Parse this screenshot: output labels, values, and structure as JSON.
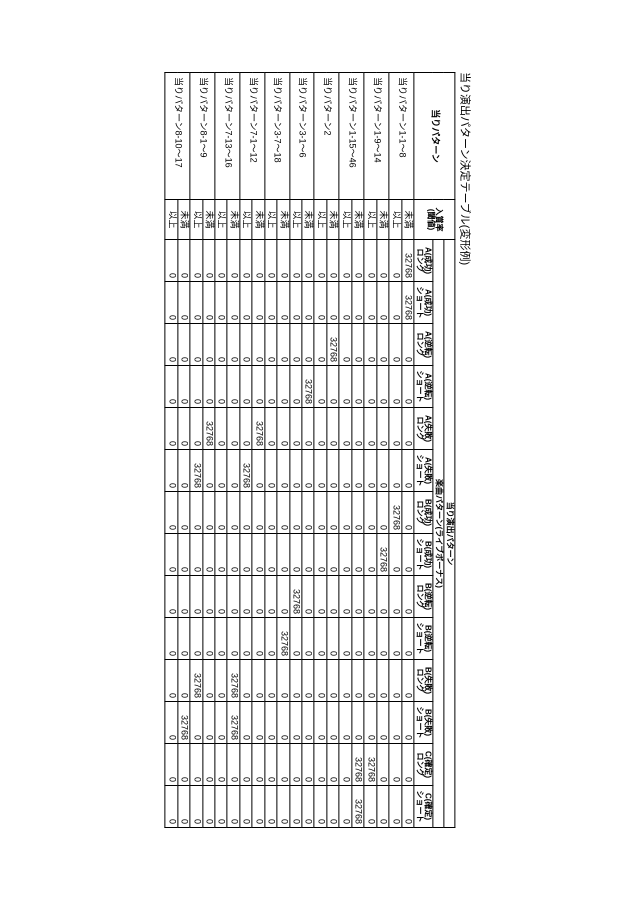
{
  "title": "当り演出パターン決定テーブル(変形例)",
  "headers": {
    "pattern_col": "当りパターン",
    "threshold_col": "入賞率\n(閾値)",
    "group_top": "当り演出パターン",
    "group_mid": "楽曲パターン(ライブボーナス)",
    "cols": [
      "A(成功)\nロング",
      "A(成功)\nショート",
      "A(逆転)\nロング",
      "A(逆転)\nショート",
      "A(失敗)\nロング",
      "A(失敗)\nショート",
      "B(成功)\nロング",
      "B(成功)\nショート",
      "B(逆転)\nロング",
      "B(逆転)\nショート",
      "B(失敗)\nロング",
      "B(失敗)\nショート",
      "C(確定)\nロング",
      "C(確定)\nショート"
    ],
    "thr_labels": [
      "未満",
      "以上"
    ]
  },
  "rows": [
    {
      "label": "当りパターン1-1～8",
      "a": [
        32768,
        32768,
        0,
        0,
        0,
        0,
        0,
        0,
        0,
        0,
        0,
        0,
        0,
        0
      ],
      "b": [
        0,
        0,
        0,
        0,
        0,
        0,
        32768,
        0,
        0,
        0,
        0,
        0,
        0,
        0
      ]
    },
    {
      "label": "当りパターン1-9～14",
      "a": [
        0,
        0,
        0,
        0,
        0,
        0,
        0,
        32768,
        0,
        0,
        0,
        0,
        0,
        0
      ],
      "b": [
        0,
        0,
        0,
        0,
        0,
        0,
        0,
        0,
        0,
        0,
        0,
        0,
        32768,
        0
      ]
    },
    {
      "label": "当りパターン1-15～46",
      "a": [
        0,
        0,
        0,
        0,
        0,
        0,
        0,
        0,
        0,
        0,
        0,
        0,
        32768,
        32768
      ],
      "b": [
        0,
        0,
        0,
        0,
        0,
        0,
        0,
        0,
        0,
        0,
        0,
        0,
        0,
        0
      ]
    },
    {
      "label": "当りパターン2",
      "a": [
        0,
        0,
        32768,
        0,
        0,
        0,
        0,
        0,
        0,
        0,
        0,
        0,
        0,
        0
      ],
      "b": [
        0,
        0,
        0,
        0,
        0,
        0,
        0,
        0,
        0,
        0,
        0,
        0,
        0,
        0
      ]
    },
    {
      "label": "当りパターン3-1～6",
      "a": [
        0,
        0,
        0,
        32768,
        0,
        0,
        0,
        0,
        0,
        0,
        0,
        0,
        0,
        0
      ],
      "b": [
        0,
        0,
        0,
        0,
        0,
        0,
        0,
        0,
        32768,
        0,
        0,
        0,
        0,
        0
      ]
    },
    {
      "label": "当りパターン3-7～18",
      "a": [
        0,
        0,
        0,
        0,
        0,
        0,
        0,
        0,
        0,
        32768,
        0,
        0,
        0,
        0
      ],
      "b": [
        0,
        0,
        0,
        0,
        0,
        0,
        0,
        0,
        0,
        0,
        0,
        0,
        0,
        0
      ]
    },
    {
      "label": "当りパターン7-1～12",
      "a": [
        0,
        0,
        0,
        0,
        32768,
        0,
        0,
        0,
        0,
        0,
        0,
        0,
        0,
        0
      ],
      "b": [
        0,
        0,
        0,
        0,
        0,
        32768,
        0,
        0,
        0,
        0,
        0,
        0,
        0,
        0
      ]
    },
    {
      "label": "当りパターン7-13～16",
      "a": [
        0,
        0,
        0,
        0,
        0,
        0,
        0,
        0,
        0,
        0,
        32768,
        32768,
        0,
        0
      ],
      "b": [
        0,
        0,
        0,
        0,
        0,
        0,
        0,
        0,
        0,
        0,
        0,
        0,
        0,
        0
      ]
    },
    {
      "label": "当りパターン8-1～9",
      "a": [
        0,
        0,
        0,
        0,
        32768,
        0,
        0,
        0,
        0,
        0,
        0,
        0,
        0,
        0
      ],
      "b": [
        0,
        0,
        0,
        0,
        0,
        32768,
        0,
        0,
        0,
        0,
        32768,
        0,
        0,
        0
      ]
    },
    {
      "label": "当りパターン8-10～17",
      "a": [
        0,
        0,
        0,
        0,
        0,
        0,
        0,
        0,
        0,
        0,
        0,
        32768,
        0,
        0
      ],
      "b": [
        0,
        0,
        0,
        0,
        0,
        0,
        0,
        0,
        0,
        0,
        0,
        0,
        0,
        0
      ]
    }
  ],
  "style": {
    "text_color": "#000000",
    "bg": "#ffffff",
    "border": "#000000"
  }
}
